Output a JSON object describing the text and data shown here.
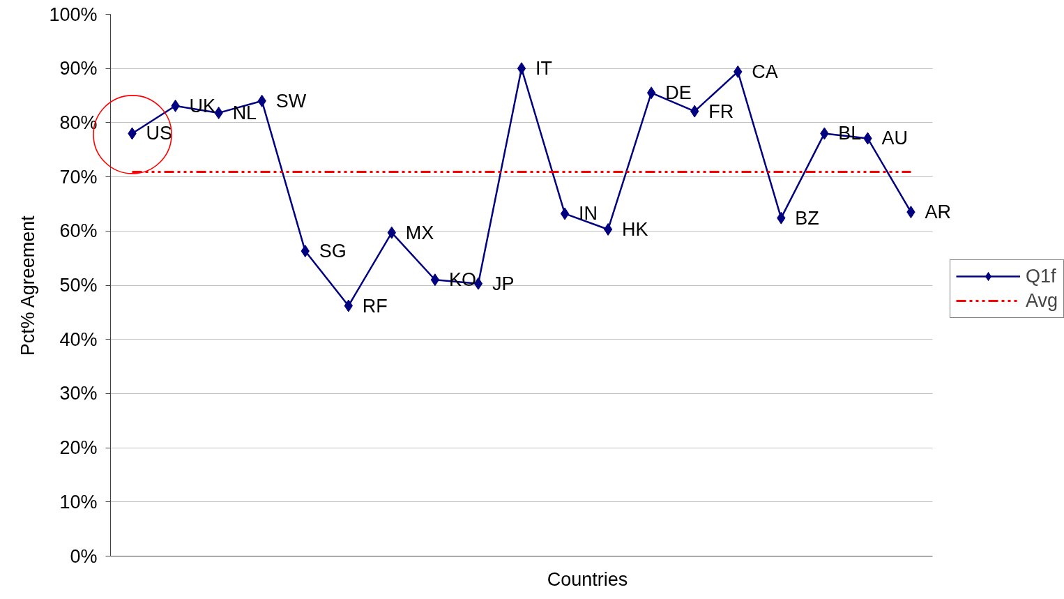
{
  "chart_data": {
    "type": "line",
    "xlabel": "Countries",
    "ylabel": "Pct% Agreement",
    "categories": [
      null,
      null,
      null,
      null,
      null,
      null,
      null,
      null,
      null,
      null,
      null,
      null,
      null,
      null,
      null,
      null,
      null,
      null,
      null
    ],
    "series": [
      {
        "name": "Q1f",
        "color": "#000080",
        "marker": "diamond",
        "line_style": "solid",
        "values": [
          78.0,
          83.1,
          81.8,
          84.0,
          56.3,
          46.2,
          59.7,
          51.0,
          50.3,
          90.0,
          63.2,
          60.3,
          85.5,
          82.1,
          89.4,
          62.4,
          78.0,
          77.1,
          63.5
        ],
        "value_labels": [
          "US",
          "UK",
          "NL",
          "SW",
          "SG",
          "RF",
          "MX",
          "KO",
          "JP",
          "IT",
          "IN",
          "HK",
          "DE",
          "FR",
          "CA",
          "BZ",
          "BL",
          "AU",
          "AR"
        ]
      },
      {
        "name": "Avg",
        "color": "#ff0000",
        "marker": "none",
        "line_style": "dashdot",
        "values": [
          70.9,
          70.9,
          70.9,
          70.9,
          70.9,
          70.9,
          70.9,
          70.9,
          70.9,
          70.9,
          70.9,
          70.9,
          70.9,
          70.9,
          70.9,
          70.9,
          70.9,
          70.9,
          70.9
        ]
      }
    ],
    "ylim": [
      0,
      100
    ],
    "yticks": [
      {
        "value": 0,
        "label": "0%"
      },
      {
        "value": 10,
        "label": "10%"
      },
      {
        "value": 20,
        "label": "20%"
      },
      {
        "value": 30,
        "label": "30%"
      },
      {
        "value": 40,
        "label": "40%"
      },
      {
        "value": 50,
        "label": "50%"
      },
      {
        "value": 60,
        "label": "60%"
      },
      {
        "value": 70,
        "label": "70%"
      },
      {
        "value": 80,
        "label": "80%"
      },
      {
        "value": 90,
        "label": "90%"
      },
      {
        "value": 100,
        "label": "100%"
      }
    ],
    "grid": "y",
    "legend": "right",
    "tick_labels": "y"
  }
}
